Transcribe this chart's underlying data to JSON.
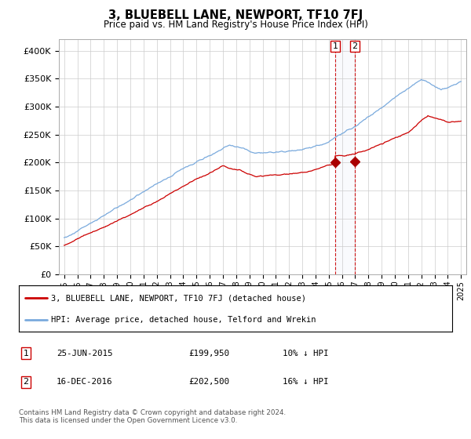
{
  "title": "3, BLUEBELL LANE, NEWPORT, TF10 7FJ",
  "subtitle": "Price paid vs. HM Land Registry's House Price Index (HPI)",
  "xlim_start": 1994.6,
  "xlim_end": 2025.4,
  "ylim": [
    0,
    420000
  ],
  "yticks": [
    0,
    50000,
    100000,
    150000,
    200000,
    250000,
    300000,
    350000,
    400000
  ],
  "ytick_labels": [
    "£0",
    "£50K",
    "£100K",
    "£150K",
    "£200K",
    "£250K",
    "£300K",
    "£350K",
    "£400K"
  ],
  "xtick_years": [
    1995,
    1996,
    1997,
    1998,
    1999,
    2000,
    2001,
    2002,
    2003,
    2004,
    2005,
    2006,
    2007,
    2008,
    2009,
    2010,
    2011,
    2012,
    2013,
    2014,
    2015,
    2016,
    2017,
    2018,
    2019,
    2020,
    2021,
    2022,
    2023,
    2024,
    2025
  ],
  "sale1_date": 2015.48,
  "sale1_price": 199950,
  "sale2_date": 2016.96,
  "sale2_price": 202500,
  "legend_line1": "3, BLUEBELL LANE, NEWPORT, TF10 7FJ (detached house)",
  "legend_line2": "HPI: Average price, detached house, Telford and Wrekin",
  "line_red_color": "#cc0000",
  "line_blue_color": "#7aaadd",
  "marker_color": "#aa0000",
  "vline_color": "#cc0000",
  "grid_color": "#cccccc",
  "footer": "Contains HM Land Registry data © Crown copyright and database right 2024.\nThis data is licensed under the Open Government Licence v3.0."
}
